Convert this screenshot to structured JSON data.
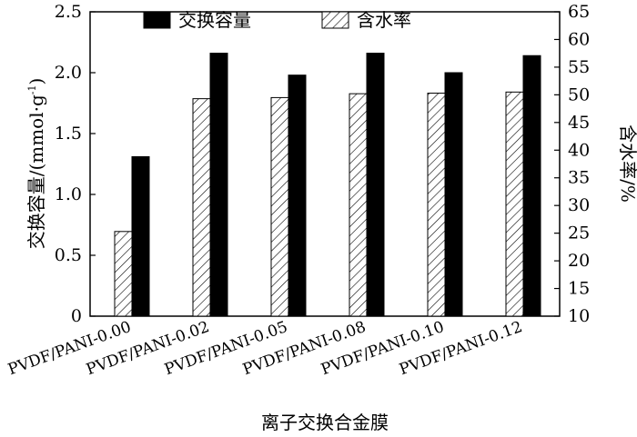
{
  "chart_data": {
    "type": "bar",
    "categories": [
      "PVDF/PANI-0.00",
      "PVDF/PANI-0.02",
      "PVDF/PANI-0.05",
      "PVDF/PANI-0.08",
      "PVDF/PANI-0.10",
      "PVDF/PANI-0.12"
    ],
    "series": [
      {
        "name": "交换容量",
        "axis": "left",
        "pattern": "solid",
        "color": "#000000",
        "values": [
          1.31,
          2.16,
          1.98,
          2.16,
          2.0,
          2.14
        ]
      },
      {
        "name": "含水率",
        "axis": "right",
        "pattern": "hatched",
        "color": "#ffffff",
        "values": [
          25.3,
          49.3,
          49.5,
          50.2,
          50.3,
          50.5
        ]
      }
    ],
    "xlabel": "离子交换合金膜",
    "ylabel_left": "交换容量/(mmol·g",
    "ylabel_left_sup": "-1",
    "ylabel_left_end": ")",
    "ylabel_right": "含水率/%",
    "ylim_left": [
      0,
      2.5
    ],
    "ylim_right": [
      10,
      65
    ],
    "yticks_left": [
      "0",
      "0.5",
      "1.0",
      "1.5",
      "2.0",
      "2.5"
    ],
    "yticks_right": [
      "10",
      "15",
      "20",
      "25",
      "30",
      "35",
      "40",
      "45",
      "50",
      "55",
      "60",
      "65"
    ],
    "legend_position": "top-center",
    "grid": false
  }
}
